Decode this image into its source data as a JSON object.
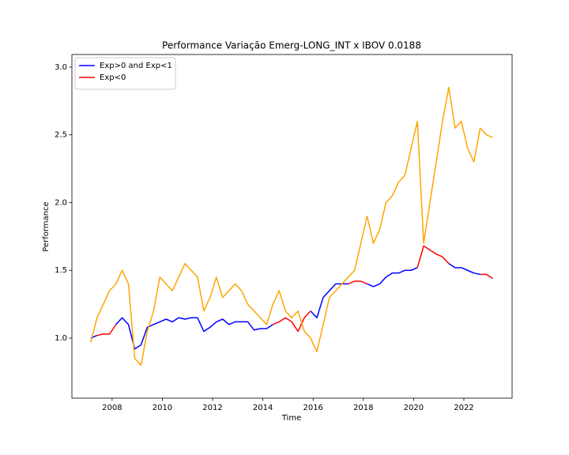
{
  "chart_data": {
    "type": "line",
    "title": "Performance Variação Emerg-LONG_INT x IBOV 0.0188",
    "x_label": "Time",
    "y_label": "Performance",
    "x": [
      2007.15,
      2007.4,
      2007.65,
      2007.9,
      2008.15,
      2008.4,
      2008.65,
      2008.9,
      2009.15,
      2009.4,
      2009.65,
      2009.9,
      2010.15,
      2010.4,
      2010.65,
      2010.9,
      2011.15,
      2011.4,
      2011.65,
      2011.9,
      2012.15,
      2012.4,
      2012.65,
      2012.9,
      2013.15,
      2013.4,
      2013.65,
      2013.9,
      2014.15,
      2014.4,
      2014.65,
      2014.9,
      2015.15,
      2015.4,
      2015.65,
      2015.9,
      2016.15,
      2016.4,
      2016.65,
      2016.9,
      2017.15,
      2017.4,
      2017.65,
      2017.9,
      2018.15,
      2018.4,
      2018.65,
      2018.9,
      2019.15,
      2019.4,
      2019.65,
      2019.9,
      2020.15,
      2020.4,
      2020.65,
      2020.9,
      2021.15,
      2021.4,
      2021.65,
      2021.9,
      2022.15,
      2022.4,
      2022.65,
      2022.9,
      2023.15
    ],
    "series": [
      {
        "name": "Exp>0 and Exp<1",
        "color": "#0000ff",
        "values": [
          1.0,
          1.02,
          null,
          null,
          1.1,
          1.15,
          1.1,
          0.92,
          0.95,
          1.08,
          1.1,
          1.12,
          1.14,
          1.12,
          1.15,
          1.14,
          1.15,
          1.15,
          1.05,
          1.08,
          1.12,
          1.14,
          1.1,
          1.12,
          1.12,
          1.12,
          1.06,
          1.07,
          1.07,
          1.1,
          null,
          null,
          null,
          null,
          null,
          1.2,
          1.15,
          1.3,
          1.35,
          1.4,
          1.4,
          1.4,
          null,
          null,
          1.4,
          1.38,
          1.4,
          1.45,
          1.48,
          1.48,
          1.5,
          1.5,
          1.52,
          null,
          null,
          null,
          null,
          1.55,
          1.52,
          1.52,
          1.5,
          1.48,
          1.47,
          null,
          null
        ]
      },
      {
        "name": "Exp<0",
        "color": "#ff0000",
        "values": [
          null,
          1.02,
          1.03,
          1.03,
          1.1,
          null,
          null,
          null,
          null,
          null,
          null,
          null,
          null,
          null,
          null,
          null,
          null,
          null,
          null,
          null,
          null,
          null,
          null,
          null,
          null,
          null,
          null,
          null,
          null,
          1.1,
          1.12,
          1.15,
          1.12,
          1.05,
          1.15,
          1.2,
          null,
          null,
          null,
          null,
          null,
          1.4,
          1.42,
          1.42,
          1.4,
          null,
          null,
          null,
          null,
          null,
          null,
          null,
          1.52,
          1.68,
          1.65,
          1.62,
          1.6,
          1.55,
          null,
          null,
          null,
          null,
          1.47,
          1.47,
          1.44
        ]
      },
      {
        "color": "#ffa500",
        "values": [
          0.97,
          1.15,
          1.25,
          1.35,
          1.4,
          1.5,
          1.4,
          0.85,
          0.8,
          1.05,
          1.2,
          1.45,
          1.4,
          1.35,
          1.45,
          1.55,
          1.5,
          1.45,
          1.2,
          1.3,
          1.45,
          1.3,
          1.35,
          1.4,
          1.35,
          1.25,
          1.2,
          1.15,
          1.1,
          1.25,
          1.35,
          1.2,
          1.15,
          1.2,
          1.05,
          1.0,
          0.9,
          1.1,
          1.3,
          1.35,
          1.4,
          1.45,
          1.5,
          1.7,
          1.9,
          1.7,
          1.8,
          2.0,
          2.05,
          2.15,
          2.2,
          2.4,
          2.6,
          1.7,
          2.0,
          2.3,
          2.6,
          2.85,
          2.55,
          2.6,
          2.4,
          2.3,
          2.55,
          2.5,
          2.48
        ]
      }
    ],
    "xlim": [
      2006.4,
      2023.92
    ],
    "ylim": [
      0.557,
      3.093
    ],
    "xticks": [
      2008,
      2010,
      2012,
      2014,
      2016,
      2018,
      2020,
      2022
    ],
    "yticks": [
      {
        "value": 1,
        "label": "1.0"
      },
      1.5,
      {
        "value": 2,
        "label": "2.0"
      },
      2.5,
      {
        "value": 3,
        "label": "3.0"
      }
    ],
    "legend": "upper left",
    "grid": false
  }
}
